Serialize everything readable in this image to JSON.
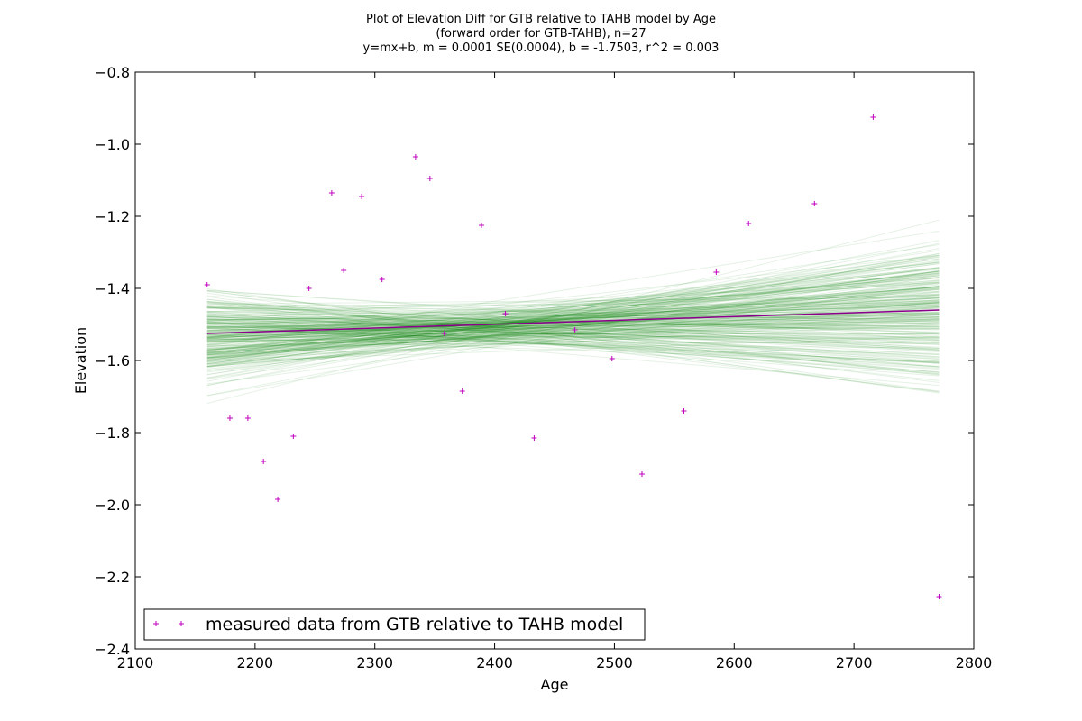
{
  "chart_data": {
    "type": "scatter",
    "title_lines": [
      "Plot of Elevation Diff for GTB relative to TAHB model by Age",
      "(forward order for GTB-TAHB), n=27",
      "y=mx+b, m = 0.0001 SE(0.0004), b = -1.7503, r^2 = 0.003"
    ],
    "xlabel": "Age",
    "ylabel": "Elevation",
    "xlim": [
      2100,
      2800
    ],
    "ylim": [
      -2.4,
      -0.8
    ],
    "xticks": [
      2100,
      2200,
      2300,
      2400,
      2500,
      2600,
      2700,
      2800
    ],
    "yticks": [
      -2.4,
      -2.2,
      -2.0,
      -1.8,
      -1.6,
      -1.4,
      -1.2,
      -1.0,
      -0.8
    ],
    "xtick_labels": [
      "2100",
      "2200",
      "2300",
      "2400",
      "2500",
      "2600",
      "2700",
      "2800"
    ],
    "ytick_labels": [
      "−2.4",
      "−2.2",
      "−2.0",
      "−1.8",
      "−1.6",
      "−1.4",
      "−1.2",
      "−1.0",
      "−0.8"
    ],
    "grid": false,
    "legend_position": "lower-left",
    "series": [
      {
        "name": "measured data from GTB relative to TAHB model",
        "marker": "+",
        "color": "#bf00bf",
        "x": [
          2160,
          2179,
          2194,
          2207,
          2219,
          2232,
          2245,
          2264,
          2274,
          2289,
          2306,
          2334,
          2346,
          2358,
          2373,
          2389,
          2409,
          2433,
          2467,
          2498,
          2523,
          2558,
          2585,
          2612,
          2667,
          2716,
          2771
        ],
        "y": [
          -1.39,
          -1.76,
          -1.76,
          -1.88,
          -1.985,
          -1.81,
          -1.4,
          -1.135,
          -1.35,
          -1.145,
          -1.375,
          -1.035,
          -1.095,
          -1.525,
          -1.685,
          -1.225,
          -1.47,
          -1.815,
          -1.515,
          -1.595,
          -1.915,
          -1.74,
          -1.355,
          -1.22,
          -1.165,
          -0.925,
          -2.255
        ]
      }
    ],
    "fit_line": {
      "color": "#8b008b",
      "x": [
        2160,
        2771
      ],
      "y": [
        -1.525,
        -1.46
      ]
    },
    "ensemble_lines": {
      "color": "#008000",
      "count": 260,
      "x_range": [
        2160,
        2771
      ],
      "pivot": [
        2380,
        -1.51
      ]
    }
  }
}
